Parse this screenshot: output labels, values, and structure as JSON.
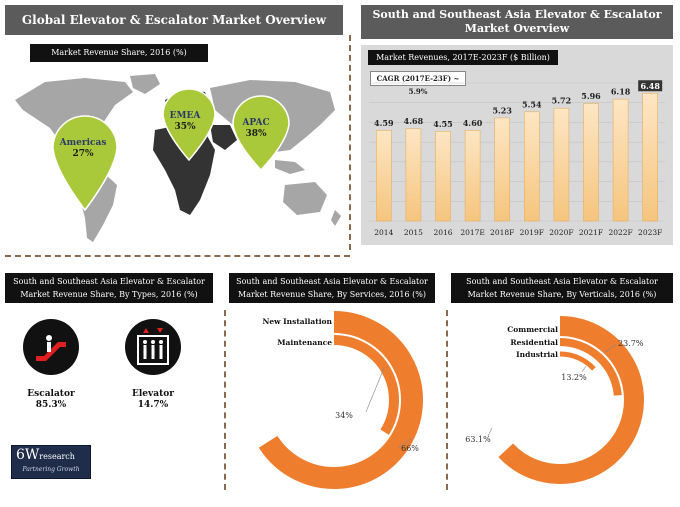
{
  "left_panel": {
    "title": "Global Elevator & Escalator Market Overview",
    "subtitle": "Market Revenue Share, 2016 (%)"
  },
  "regions": [
    {
      "name": "Americas",
      "value": "27%"
    },
    {
      "name": "EMEA",
      "value": "35%"
    },
    {
      "name": "APAC",
      "value": "38%"
    }
  ],
  "right_panel": {
    "title_line1": "South and Southeast Asia Elevator & Escalator",
    "title_line2": "Market Overview",
    "subtitle": "Market Revenues, 2017E-2023F ($ Billion)",
    "cagr": "CAGR (2017E-23F) ~ 5.9%"
  },
  "chart_data": [
    {
      "type": "bar",
      "title": "Market Revenues, 2017E-2023F ($ Billion)",
      "categories": [
        "2014",
        "2015",
        "2016",
        "2017E",
        "2018F",
        "2019F",
        "2020F",
        "2021F",
        "2022F",
        "2023F"
      ],
      "values": [
        4.59,
        4.68,
        4.55,
        4.6,
        5.23,
        5.54,
        5.72,
        5.96,
        6.18,
        6.48
      ],
      "labels": [
        "4.59",
        "4.68",
        "4.55",
        "4.60",
        "5.23",
        "5.54",
        "5.72",
        "5.96",
        "6.18",
        "6.48"
      ],
      "ylim": [
        0,
        7
      ]
    },
    {
      "type": "pie",
      "title": "Market Revenue Share, By Services, 2016 (%)",
      "categories": [
        "New Installation",
        "Maintenance"
      ],
      "values": [
        66,
        34
      ],
      "labels": [
        "66%",
        "34%"
      ]
    },
    {
      "type": "pie",
      "title": "Market Revenue Share, By Verticals, 2016 (%)",
      "categories": [
        "Commercial",
        "Residential",
        "Industrial"
      ],
      "values": [
        63.1,
        23.7,
        13.2
      ],
      "labels": [
        "63.1%",
        "23.7%",
        "13.2%"
      ]
    }
  ],
  "types_panel": {
    "title_line1": "South and Southeast Asia Elevator & Escalator",
    "title_line2": "Market Revenue Share, By Types, 2016 (%)",
    "items": [
      {
        "name": "Escalator",
        "value": "85.3%"
      },
      {
        "name": "Elevator",
        "value": "14.7%"
      }
    ]
  },
  "services_panel": {
    "title_line1": "South and Southeast Asia Elevator & Escalator",
    "title_line2": "Market Revenue Share, By Services, 2016 (%)"
  },
  "verticals_panel": {
    "title_line1": "South and Southeast Asia Elevator & Escalator",
    "title_line2": "Market Revenue Share, By Verticals, 2016 (%)"
  },
  "logo": {
    "mark": "6W",
    "word": "research",
    "tagline": "Partnering Growth"
  },
  "colors": {
    "bar_fill": "#f7cb8c",
    "bar_top": "#fde6c4",
    "ring": "#ee7d2e",
    "header_gray": "#5b5b5b",
    "map_gray": "#a6a6a6",
    "map_dark": "#333333",
    "pin_green": "#a9c93a"
  }
}
